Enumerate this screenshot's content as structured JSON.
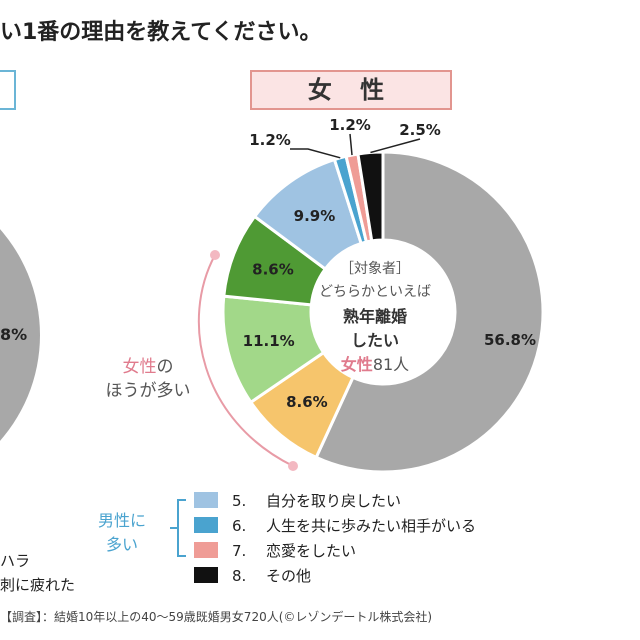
{
  "page": {
    "title": "い1番の理由を教えてください。",
    "gender_tab": "女 性",
    "left_partial": {
      "percent": "8%",
      "legend_line1": "ハラ",
      "legend_line2": "刺に疲れた"
    },
    "center_label": {
      "line1": "［対象者］",
      "line2": "どちらかといえば",
      "line3": "熟年離婚",
      "line4": "したい",
      "line5_highlight": "女性",
      "line5_rest": "81人"
    },
    "side_note": {
      "female_line1_highlight": "女性",
      "female_line1_rest": "の",
      "female_line2": "ほうが多い",
      "male_line1": "男性に",
      "male_line2": "多い"
    },
    "legend": [
      {
        "number": "5.",
        "label": "自分を取り戻したい",
        "color": "#9fc3e2"
      },
      {
        "number": "6.",
        "label": "人生を共に歩みたい相手がいる",
        "color": "#4aa3cf"
      },
      {
        "number": "7.",
        "label": "恋愛をしたい",
        "color": "#ef9c96"
      },
      {
        "number": "8.",
        "label": "その他",
        "color": "#111111"
      }
    ],
    "footer": "【調査】：結婚10年以上の40～59歳既婚男女720人(©レゾンデートル株式会社)",
    "colors": {
      "female_accent": "#e2958f",
      "male_accent": "#4aa3cf",
      "highlight_pink": "#e07b8d",
      "left_gray": "#a8a8a8"
    }
  },
  "chart_data": {
    "type": "pie",
    "donut": true,
    "title": "女 性",
    "values": [
      56.8,
      8.6,
      11.1,
      8.6,
      9.9,
      1.2,
      1.2,
      2.5
    ],
    "labels": [
      "56.8%",
      "8.6%",
      "11.1%",
      "8.6%",
      "9.9%",
      "1.2%",
      "1.2%",
      "2.5%"
    ],
    "colors": [
      "#a8a8a8",
      "#f6c56c",
      "#a2d889",
      "#4f9a34",
      "#9fc3e2",
      "#4aa3cf",
      "#ef9c96",
      "#111111"
    ]
  }
}
